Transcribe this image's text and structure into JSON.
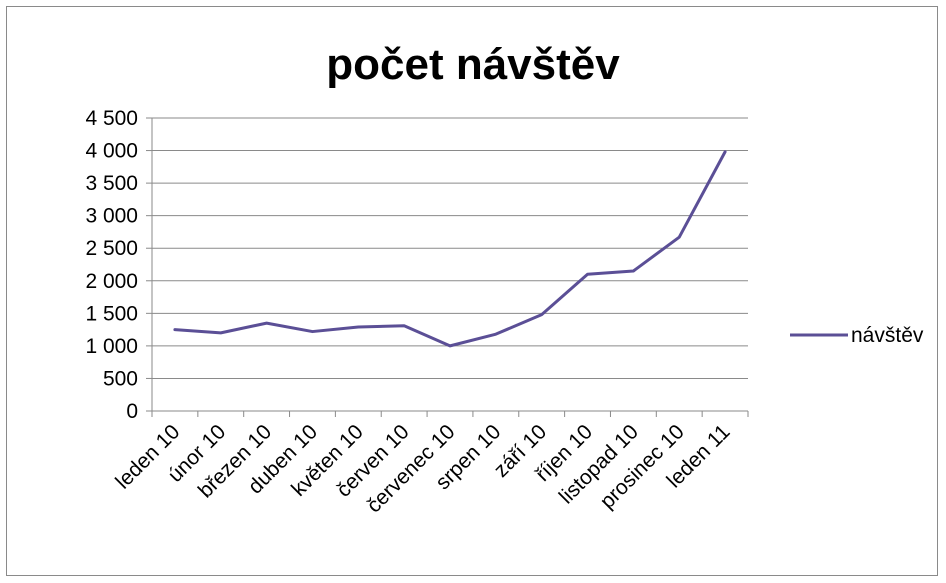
{
  "chart_data": {
    "type": "line",
    "title": "počet návštěv",
    "xlabel": "",
    "ylabel": "",
    "categories": [
      "leden 10",
      "únor 10",
      "březen 10",
      "duben 10",
      "květen 10",
      "červen 10",
      "červenec 10",
      "srpen 10",
      "září 10",
      "říjen 10",
      "listopad 10",
      "prosinec 10",
      "leden 11"
    ],
    "y_ticks": [
      "0",
      "500",
      "1 000",
      "1 500",
      "2 000",
      "2 500",
      "3 000",
      "3 500",
      "4 000",
      "4 500"
    ],
    "ylim": [
      0,
      4500
    ],
    "grid": true,
    "legend_position": "right",
    "series": [
      {
        "name": "návštěv",
        "color": "#5b4f96",
        "values": [
          1250,
          1200,
          1350,
          1220,
          1290,
          1310,
          1000,
          1180,
          1480,
          2100,
          2150,
          2670,
          3980
        ]
      }
    ]
  }
}
